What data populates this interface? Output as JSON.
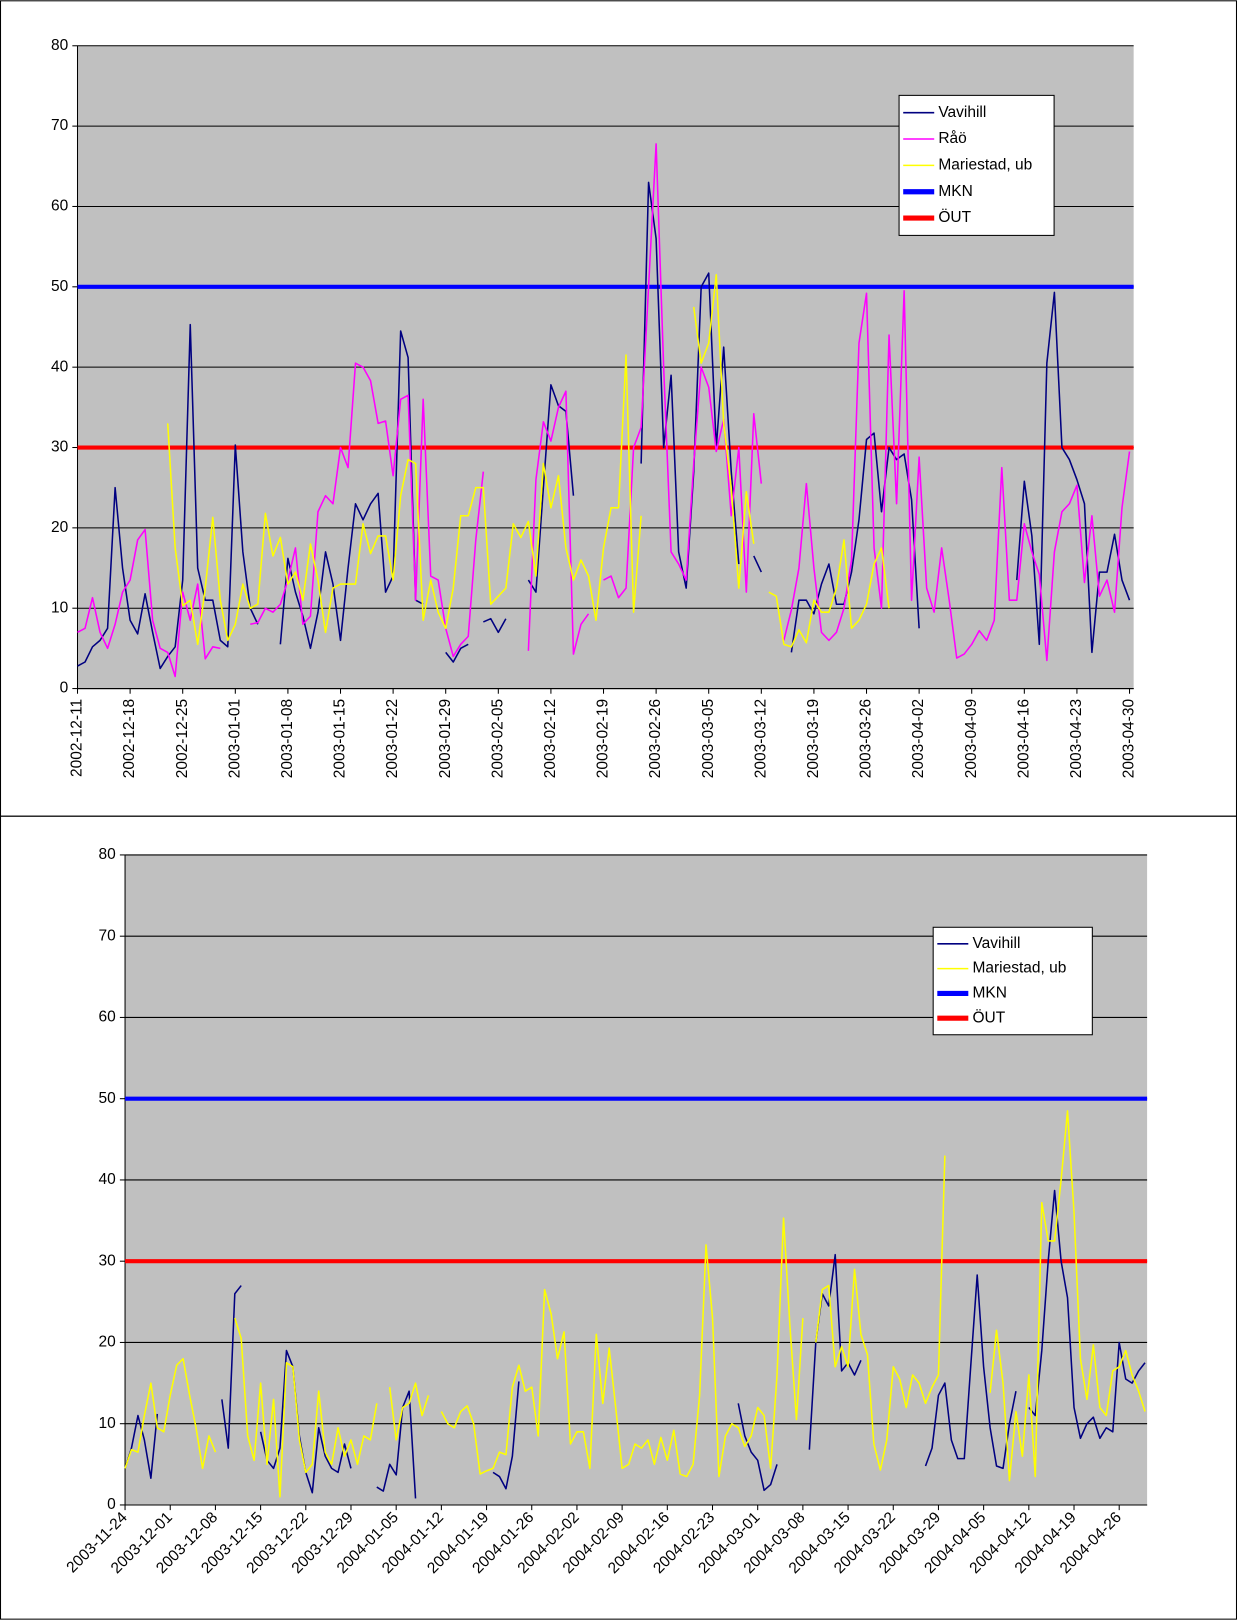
{
  "chart_data": [
    {
      "type": "line",
      "grid": true,
      "legend": "upper right",
      "ylim": [
        0,
        80
      ],
      "yticks": [
        0,
        10,
        20,
        30,
        40,
        50,
        60,
        70,
        80
      ],
      "categories": [
        "2002-12-11",
        null,
        null,
        null,
        null,
        null,
        null,
        "2002-12-18",
        null,
        null,
        null,
        null,
        null,
        null,
        "2002-12-25",
        null,
        null,
        null,
        null,
        null,
        null,
        "2003-01-01",
        null,
        null,
        null,
        null,
        null,
        null,
        "2003-01-08",
        null,
        null,
        null,
        null,
        null,
        null,
        "2003-01-15",
        null,
        null,
        null,
        null,
        null,
        null,
        "2003-01-22",
        null,
        null,
        null,
        null,
        null,
        null,
        "2003-01-29",
        null,
        null,
        null,
        null,
        null,
        null,
        "2003-02-05",
        null,
        null,
        null,
        null,
        null,
        null,
        "2003-02-12",
        null,
        null,
        null,
        null,
        null,
        null,
        "2003-02-19",
        null,
        null,
        null,
        null,
        null,
        null,
        "2003-02-26",
        null,
        null,
        null,
        null,
        null,
        null,
        "2003-03-05",
        null,
        null,
        null,
        null,
        null,
        null,
        "2003-03-12",
        null,
        null,
        null,
        null,
        null,
        null,
        "2003-03-19",
        null,
        null,
        null,
        null,
        null,
        null,
        "2003-03-26",
        null,
        null,
        null,
        null,
        null,
        null,
        "2003-04-02",
        null,
        null,
        null,
        null,
        null,
        null,
        "2003-04-09",
        null,
        null,
        null,
        null,
        null,
        null,
        "2003-04-16",
        null,
        null,
        null,
        null,
        null,
        null,
        "2003-04-23",
        null,
        null,
        null,
        null,
        null,
        null,
        "2003-04-30"
      ],
      "series": [
        {
          "name": "Vavihill",
          "color": "#000080",
          "values": [
            2.8,
            3.3,
            5.2,
            6,
            7.5,
            25,
            15,
            8.5,
            6.8,
            11.8,
            7,
            2.5,
            4,
            5.2,
            13.5,
            45.3,
            15,
            11,
            11,
            6,
            5.2,
            30.3,
            17,
            10,
            8,
            null,
            null,
            5.5,
            16.2,
            12,
            9,
            5,
            9.5,
            17,
            13,
            6,
            15,
            23,
            21,
            23,
            24.3,
            12,
            14,
            44.5,
            41.2,
            11,
            10.5,
            null,
            null,
            4.5,
            3.3,
            5,
            5.5,
            null,
            8.3,
            8.7,
            7,
            8.7,
            null,
            null,
            13.5,
            12,
            25,
            37.8,
            35.2,
            34.5,
            24,
            null,
            null,
            null,
            null,
            null,
            null,
            null,
            null,
            28,
            63,
            56,
            30,
            39,
            17,
            12.5,
            27,
            50,
            51.7,
            30,
            42.5,
            27,
            15.5,
            null,
            16.5,
            14.5,
            null,
            null,
            null,
            4.5,
            11,
            11,
            9.3,
            13,
            15.5,
            10.5,
            10.5,
            14.5,
            21,
            31,
            31.8,
            22,
            30,
            28.5,
            29.2,
            23.5,
            7.5,
            null,
            null,
            null,
            null,
            null,
            null,
            null,
            null,
            null,
            null,
            null,
            null,
            13.5,
            25.8,
            19,
            5.5,
            40.5,
            49.3,
            30,
            28.5,
            26,
            23,
            4.5,
            14.5,
            14.5,
            19.2,
            13.5,
            11
          ]
        },
        {
          "name": "Råö",
          "color": "#ff00ff",
          "values": [
            7,
            7.5,
            11.3,
            7,
            5,
            8,
            12,
            13.5,
            18.5,
            19.8,
            8.5,
            5,
            4.5,
            1.5,
            12,
            8.5,
            13,
            3.7,
            5.2,
            5,
            null,
            null,
            null,
            8,
            8.2,
            10,
            9.5,
            10.5,
            13.5,
            17.5,
            8,
            9,
            22,
            24,
            23,
            30,
            27.5,
            40.5,
            40,
            38.3,
            33,
            33.3,
            26.5,
            36,
            36.5,
            11,
            36,
            14,
            13.5,
            7.5,
            4,
            5.5,
            6.5,
            18.5,
            27,
            null,
            null,
            null,
            null,
            null,
            4.7,
            26,
            33.2,
            30.8,
            35,
            37,
            4.3,
            8,
            9.3,
            null,
            13.5,
            14,
            11.3,
            12.5,
            30,
            32.5,
            50,
            67.8,
            40,
            17,
            15.5,
            13.5,
            28,
            40,
            37.5,
            29.5,
            33.5,
            21.5,
            30,
            12,
            34.2,
            25.5,
            null,
            null,
            6,
            9.8,
            15,
            25.5,
            15,
            7,
            6,
            7,
            10,
            16,
            43,
            49.2,
            17.5,
            10,
            44,
            23,
            49.5,
            11,
            28.8,
            12.5,
            9.5,
            17.5,
            11,
            3.8,
            4.3,
            5.5,
            7.2,
            6,
            8.5,
            27.5,
            11,
            11,
            20.5,
            17,
            14.2,
            3.5,
            17,
            22,
            23,
            25.3,
            13.2,
            21.5,
            11.5,
            13.5,
            9.5,
            22.5,
            29.5
          ]
        },
        {
          "name": "Mariestad, ub",
          "color": "#ffff00",
          "values": [
            null,
            null,
            null,
            null,
            null,
            null,
            null,
            null,
            null,
            null,
            null,
            null,
            33,
            17.5,
            10.3,
            11,
            5.5,
            12.5,
            21.3,
            11,
            6,
            8,
            13,
            10,
            10.5,
            21.8,
            16.5,
            18.8,
            13,
            14.5,
            11,
            18,
            13.5,
            7,
            12.5,
            13,
            13,
            13,
            20.5,
            16.8,
            19,
            19,
            13.5,
            24,
            28.5,
            28,
            8.5,
            13.5,
            9.5,
            7.5,
            12.5,
            21.5,
            21.5,
            25,
            25,
            10.5,
            11.5,
            12.5,
            20.5,
            18.8,
            20.8,
            14,
            28,
            22.5,
            26.5,
            17.5,
            13.5,
            16,
            14,
            8.5,
            17.5,
            22.5,
            22.5,
            41.5,
            9.5,
            21.5,
            null,
            null,
            null,
            null,
            null,
            null,
            47.5,
            40.5,
            43,
            51.5,
            33,
            25,
            12.5,
            24.5,
            18,
            null,
            12,
            11.5,
            5.5,
            5.2,
            7.3,
            5.7,
            11,
            9.5,
            9.5,
            12.5,
            18.5,
            7.5,
            8.5,
            10.5,
            15.5,
            17.5,
            10,
            null,
            null,
            null,
            null,
            null,
            null,
            null,
            null,
            null,
            null,
            null,
            null,
            null,
            null,
            null,
            null,
            null,
            null,
            null,
            null,
            null,
            null,
            null,
            null,
            null,
            null,
            null,
            null,
            null,
            null,
            null,
            null
          ]
        }
      ],
      "hlines": [
        {
          "name": "MKN",
          "color": "#0000ff",
          "value": 50
        },
        {
          "name": "ÖUT",
          "color": "#ff0000",
          "value": 30
        }
      ]
    },
    {
      "type": "line",
      "grid": true,
      "legend": "upper right",
      "ylim": [
        0,
        80
      ],
      "yticks": [
        0,
        10,
        20,
        30,
        40,
        50,
        60,
        70,
        80
      ],
      "categories": [
        "2003-11-24",
        null,
        null,
        null,
        null,
        null,
        null,
        "2003-12-01",
        null,
        null,
        null,
        null,
        null,
        null,
        "2003-12-08",
        null,
        null,
        null,
        null,
        null,
        null,
        "2003-12-15",
        null,
        null,
        null,
        null,
        null,
        null,
        "2003-12-22",
        null,
        null,
        null,
        null,
        null,
        null,
        "2003-12-29",
        null,
        null,
        null,
        null,
        null,
        null,
        "2004-01-05",
        null,
        null,
        null,
        null,
        null,
        null,
        "2004-01-12",
        null,
        null,
        null,
        null,
        null,
        null,
        "2004-01-19",
        null,
        null,
        null,
        null,
        null,
        null,
        "2004-01-26",
        null,
        null,
        null,
        null,
        null,
        null,
        "2004-02-02",
        null,
        null,
        null,
        null,
        null,
        null,
        "2004-02-09",
        null,
        null,
        null,
        null,
        null,
        null,
        "2004-02-16",
        null,
        null,
        null,
        null,
        null,
        null,
        "2004-02-23",
        null,
        null,
        null,
        null,
        null,
        null,
        "2004-03-01",
        null,
        null,
        null,
        null,
        null,
        null,
        "2004-03-08",
        null,
        null,
        null,
        null,
        null,
        null,
        "2004-03-15",
        null,
        null,
        null,
        null,
        null,
        null,
        "2004-03-22",
        null,
        null,
        null,
        null,
        null,
        null,
        "2004-03-29",
        null,
        null,
        null,
        null,
        null,
        null,
        "2004-04-05",
        null,
        null,
        null,
        null,
        null,
        null,
        "2004-04-12",
        null,
        null,
        null,
        null,
        null,
        null,
        "2004-04-19",
        null,
        null,
        null,
        null,
        null,
        null,
        "2004-04-26",
        null,
        null,
        null,
        null
      ],
      "series": [
        {
          "name": "Vavihill",
          "color": "#000080",
          "values": [
            4.5,
            7,
            11,
            8,
            3.3,
            11.2,
            null,
            null,
            null,
            null,
            null,
            null,
            null,
            null,
            null,
            13,
            7,
            26,
            27,
            null,
            null,
            9,
            5.5,
            4.5,
            7,
            19,
            17,
            8.5,
            4,
            1.5,
            9.5,
            6,
            4.5,
            4,
            7.5,
            4.5,
            null,
            null,
            null,
            2.2,
            1.7,
            5,
            3.7,
            12,
            14,
            0.8,
            null,
            null,
            null,
            null,
            null,
            null,
            null,
            null,
            null,
            null,
            null,
            4,
            3.5,
            2,
            6,
            15.2,
            null,
            null,
            null,
            null,
            null,
            null,
            null,
            null,
            null,
            null,
            null,
            null,
            null,
            null,
            null,
            null,
            null,
            null,
            null,
            null,
            null,
            null,
            null,
            null,
            null,
            null,
            null,
            null,
            null,
            null,
            null,
            null,
            null,
            12.5,
            8.5,
            6.5,
            5.5,
            1.8,
            2.5,
            5,
            null,
            null,
            null,
            null,
            6.8,
            20,
            26,
            24.5,
            30.8,
            16.5,
            17.5,
            16,
            17.8,
            null,
            null,
            null,
            null,
            null,
            null,
            null,
            null,
            null,
            4.8,
            7,
            13.5,
            15,
            8,
            5.7,
            5.7,
            17,
            28.3,
            17,
            9.5,
            4.8,
            4.5,
            10,
            14,
            null,
            12,
            11,
            19,
            30,
            38.7,
            30,
            25.5,
            12,
            8.2,
            10,
            10.8,
            8.2,
            9.5,
            9,
            20,
            15.5,
            15,
            16.5,
            17.5
          ]
        },
        {
          "name": "Mariestad, ub",
          "color": "#ffff00",
          "values": [
            4.5,
            6.8,
            6.5,
            11,
            15,
            9.5,
            9,
            13.5,
            17.2,
            18,
            13.5,
            9.5,
            4.5,
            8.5,
            6.5,
            null,
            null,
            23,
            20.5,
            8.5,
            5.5,
            15,
            5,
            13,
            1,
            17.5,
            17,
            8,
            4,
            5,
            14,
            6.5,
            5,
            9.5,
            6,
            8,
            5,
            8.5,
            8,
            12.5,
            null,
            14.5,
            8,
            12,
            12.5,
            15,
            11,
            13.5,
            null,
            11.5,
            10,
            9.5,
            11.5,
            12.2,
            10,
            3.8,
            4.2,
            4.5,
            6.5,
            6.2,
            14.5,
            17.2,
            14,
            14.5,
            8.5,
            26.5,
            23.5,
            18,
            21.3,
            7.5,
            9,
            9,
            4.5,
            21,
            12.5,
            19.3,
            12,
            4.5,
            5,
            7.5,
            7,
            8,
            5,
            8.3,
            5.5,
            9.2,
            3.8,
            3.5,
            5,
            13.5,
            32,
            23,
            3.5,
            8.5,
            10,
            9.5,
            7.2,
            8.5,
            12,
            11,
            4.5,
            16,
            35.3,
            22,
            10.5,
            23,
            null,
            20,
            26.5,
            27,
            17,
            19.5,
            17,
            29,
            21,
            18.5,
            7.5,
            4.3,
            8,
            17,
            15.5,
            12,
            16,
            15,
            12.5,
            14.5,
            16,
            43,
            null,
            null,
            null,
            null,
            null,
            null,
            13.8,
            21.5,
            15,
            3,
            11.5,
            6,
            16,
            3.5,
            37.2,
            32.5,
            32.5,
            40,
            48.5,
            36,
            18,
            13,
            19.7,
            12,
            11,
            16.5,
            17,
            19,
            16,
            14,
            11.5
          ]
        }
      ],
      "hlines": [
        {
          "name": "MKN",
          "color": "#0000ff",
          "value": 50
        },
        {
          "name": "ÖUT",
          "color": "#ff0000",
          "value": 30
        }
      ]
    }
  ]
}
